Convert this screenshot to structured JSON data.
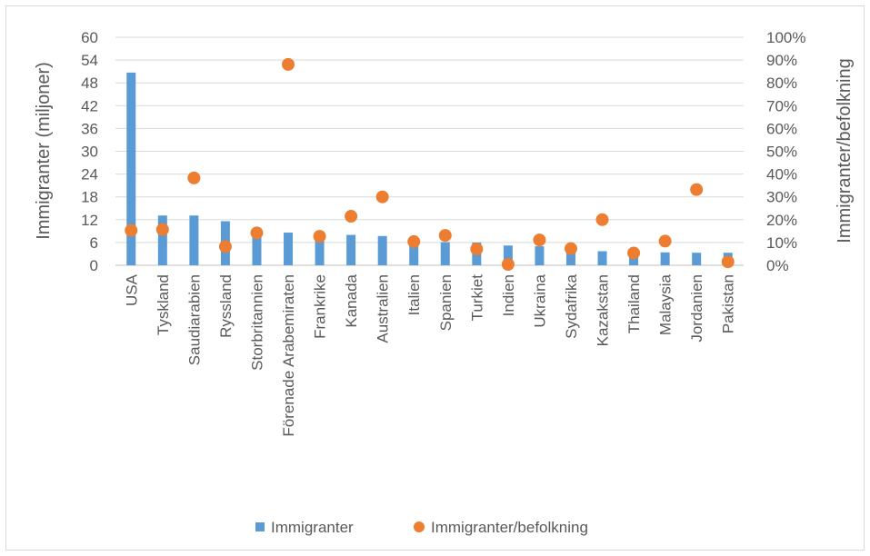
{
  "chart_data": {
    "type": "bar",
    "title": "",
    "xlabel": "",
    "ylabel": "Immigranter (miljoner)",
    "y2label": "Immigranter/befolkning",
    "ylim": [
      0,
      60
    ],
    "y2lim": [
      0,
      100
    ],
    "yticks": [
      "0",
      "6",
      "12",
      "18",
      "24",
      "30",
      "36",
      "42",
      "48",
      "54",
      "60"
    ],
    "y2ticks": [
      "0%",
      "10%",
      "20%",
      "30%",
      "40%",
      "50%",
      "60%",
      "70%",
      "80%",
      "90%",
      "100%"
    ],
    "grid": true,
    "legend_position": "bottom",
    "categories": [
      "USA",
      "Tyskland",
      "Saudiarabien",
      "Ryssland",
      "Storbritannien",
      "Förenade Arabemiraten",
      "Frankrike",
      "Kanada",
      "Australien",
      "Italien",
      "Spanien",
      "Turkiet",
      "Indien",
      "Ukraina",
      "Sydafrika",
      "Kazakstan",
      "Thailand",
      "Malaysia",
      "Jordanien",
      "Pakistan"
    ],
    "series": [
      {
        "name": "Immigranter",
        "kind": "bar",
        "axis": "left",
        "color": "#5b9bd5",
        "values": [
          50.7,
          13.1,
          13.1,
          11.6,
          9.6,
          8.6,
          8.3,
          8.0,
          7.7,
          6.3,
          6.1,
          6.0,
          5.2,
          5.0,
          4.2,
          3.7,
          3.6,
          3.4,
          3.3,
          3.3
        ]
      },
      {
        "name": "Immigranter/befolkning",
        "kind": "scatter",
        "axis": "right",
        "color": "#ed7d31",
        "values": [
          15.3,
          15.7,
          38.3,
          8.2,
          14.2,
          88.1,
          12.7,
          21.5,
          30.0,
          10.4,
          13.1,
          7.1,
          0.4,
          11.1,
          7.3,
          20.0,
          5.4,
          10.6,
          33.2,
          1.5
        ]
      }
    ]
  }
}
